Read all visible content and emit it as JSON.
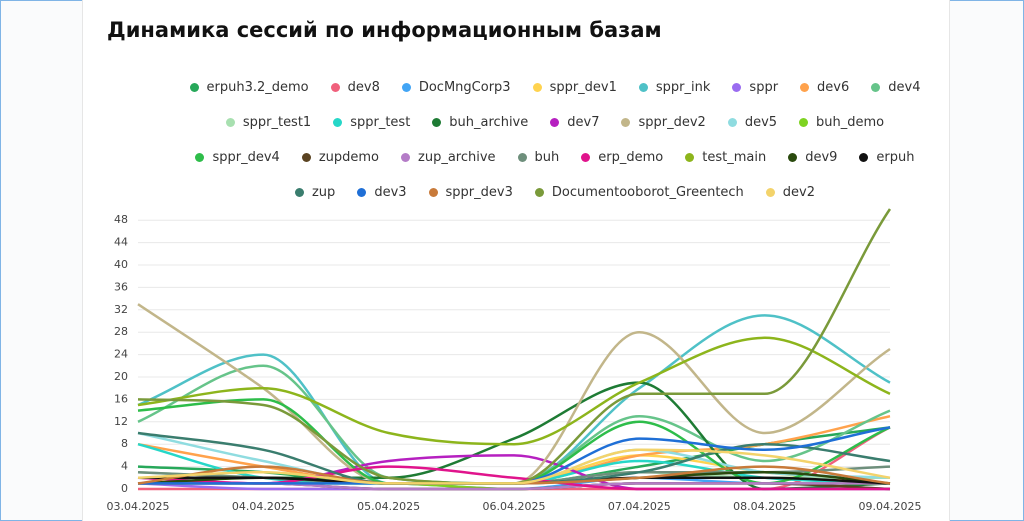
{
  "chart_data": {
    "type": "line",
    "title": "Динамика сессий по информационным базам",
    "categories": [
      "03.04.2025",
      "04.04.2025",
      "05.04.2025",
      "06.04.2025",
      "07.04.2025",
      "08.04.2025",
      "09.04.2025"
    ],
    "ylim": [
      0,
      50
    ],
    "yticks": [
      0,
      4,
      8,
      12,
      16,
      20,
      24,
      28,
      32,
      36,
      40,
      44,
      48
    ],
    "grid": true,
    "series": [
      {
        "name": "erpuh3.2_demo",
        "color": "#27a85a",
        "values": [
          4,
          3,
          1,
          1,
          4,
          8,
          11
        ]
      },
      {
        "name": "dev8",
        "color": "#f0607c",
        "values": [
          0,
          0,
          0,
          0,
          0,
          0,
          11
        ]
      },
      {
        "name": "DocMngCorp3",
        "color": "#42a5f5",
        "values": [
          1,
          1,
          1,
          0,
          2,
          1,
          1
        ]
      },
      {
        "name": "sppr_dev1",
        "color": "#ffd34f",
        "values": [
          2,
          2,
          1,
          1,
          6,
          3,
          1
        ]
      },
      {
        "name": "sppr_ink",
        "color": "#4fc1c7",
        "values": [
          15,
          24,
          1,
          1,
          18,
          31,
          19
        ]
      },
      {
        "name": "sppr",
        "color": "#9a6cf0",
        "values": [
          1,
          0,
          0,
          0,
          1,
          1,
          0
        ]
      },
      {
        "name": "dev6",
        "color": "#ffa24c",
        "values": [
          8,
          4,
          1,
          1,
          6,
          8,
          13
        ]
      },
      {
        "name": "dev4",
        "color": "#66c48a",
        "values": [
          12,
          22,
          2,
          1,
          13,
          5,
          14
        ]
      },
      {
        "name": "sppr_test1",
        "color": "#a8e0b0",
        "values": [
          3,
          2,
          1,
          1,
          3,
          2,
          2
        ]
      },
      {
        "name": "sppr_test",
        "color": "#26d7c8",
        "values": [
          8,
          2,
          1,
          1,
          5,
          2,
          1
        ]
      },
      {
        "name": "buh_archive",
        "color": "#1e7b34",
        "values": [
          2,
          2,
          2,
          9,
          19,
          0,
          1
        ]
      },
      {
        "name": "dev7",
        "color": "#b620c0",
        "values": [
          2,
          1,
          5,
          6,
          0,
          0,
          0
        ]
      },
      {
        "name": "sppr_dev2",
        "color": "#c2b68a",
        "values": [
          33,
          18,
          1,
          1,
          28,
          10,
          25
        ]
      },
      {
        "name": "dev5",
        "color": "#8fdce0",
        "values": [
          10,
          5,
          1,
          1,
          7,
          3,
          2
        ]
      },
      {
        "name": "buh_demo",
        "color": "#7ed321",
        "values": [
          1,
          1,
          1,
          0,
          1,
          1,
          1
        ]
      },
      {
        "name": "sppr_dev4",
        "color": "#2ebd4a",
        "values": [
          14,
          16,
          1,
          1,
          12,
          1,
          11
        ]
      },
      {
        "name": "zupdemo",
        "color": "#5a4321",
        "values": [
          1,
          1,
          0,
          0,
          1,
          1,
          0
        ]
      },
      {
        "name": "zup_archive",
        "color": "#b47cc7",
        "values": [
          1,
          1,
          0,
          0,
          1,
          1,
          1
        ]
      },
      {
        "name": "buh",
        "color": "#6e8f7c",
        "values": [
          3,
          2,
          1,
          1,
          3,
          3,
          4
        ]
      },
      {
        "name": "erp_demo",
        "color": "#e0148c",
        "values": [
          2,
          1,
          4,
          2,
          0,
          0,
          0
        ]
      },
      {
        "name": "test_main",
        "color": "#8db51c",
        "values": [
          15,
          18,
          10,
          8,
          19,
          27,
          17
        ]
      },
      {
        "name": "dev9",
        "color": "#2a4a0e",
        "values": [
          1,
          2,
          1,
          1,
          2,
          3,
          1
        ]
      },
      {
        "name": "erpuh",
        "color": "#111111",
        "values": [
          2,
          2,
          1,
          1,
          2,
          2,
          1
        ]
      },
      {
        "name": "zup",
        "color": "#3a7d6e",
        "values": [
          10,
          7,
          1,
          1,
          3,
          8,
          5
        ]
      },
      {
        "name": "dev3",
        "color": "#1f6fd6",
        "values": [
          1,
          1,
          1,
          1,
          9,
          7,
          11
        ]
      },
      {
        "name": "sppr_dev3",
        "color": "#c87a3a",
        "values": [
          1,
          4,
          1,
          1,
          2,
          4,
          1
        ]
      },
      {
        "name": "Documentooborot_Greentech",
        "color": "#7a9a3a",
        "values": [
          16,
          15,
          2,
          1,
          17,
          17,
          50
        ]
      },
      {
        "name": "dev2",
        "color": "#f3d36b",
        "values": [
          2,
          3,
          1,
          1,
          7,
          6,
          2
        ]
      }
    ]
  }
}
